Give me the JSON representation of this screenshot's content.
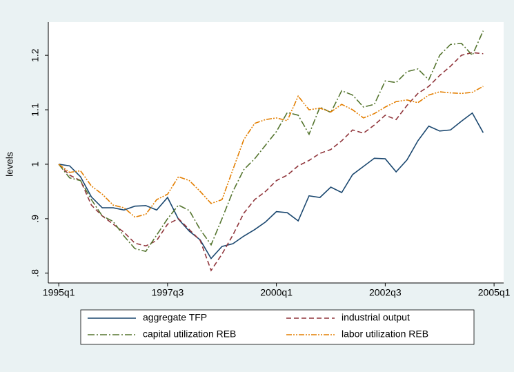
{
  "chart_data": {
    "type": "line",
    "y_label": "levels",
    "x": [
      1995,
      1995.25,
      1995.5,
      1995.75,
      1996,
      1996.25,
      1996.5,
      1996.75,
      1997,
      1997.25,
      1997.5,
      1997.75,
      1998,
      1998.25,
      1998.5,
      1998.75,
      1999,
      1999.25,
      1999.5,
      1999.75,
      2000,
      2000.25,
      2000.5,
      2000.75,
      2001,
      2001.25,
      2001.5,
      2001.75,
      2002,
      2002.25,
      2002.5,
      2002.75,
      2003,
      2003.25,
      2003.5,
      2003.75,
      2004,
      2004.25,
      2004.5,
      2004.75
    ],
    "xlim": [
      1994.76,
      2005.22
    ],
    "xticks": [
      {
        "value": 1995,
        "label": "1995q1"
      },
      {
        "value": 1997.5,
        "label": "1997q3"
      },
      {
        "value": 2000,
        "label": "2000q1"
      },
      {
        "value": 2002.5,
        "label": "2002q3"
      },
      {
        "value": 2005,
        "label": "2005q1"
      }
    ],
    "ylim": [
      0.782,
      1.261
    ],
    "yticks": [
      {
        "value": 0.8,
        "label": ".8"
      },
      {
        "value": 0.9,
        "label": ".9"
      },
      1,
      1.1,
      1.2
    ],
    "legend_position": "bottom",
    "series": [
      {
        "name": "aggregate TFP",
        "color": "#1a476f",
        "dash": "none",
        "values": [
          1.0,
          0.997,
          0.977,
          0.94,
          0.92,
          0.92,
          0.916,
          0.923,
          0.924,
          0.916,
          0.939,
          0.899,
          0.877,
          0.861,
          0.827,
          0.849,
          0.854,
          0.868,
          0.88,
          0.894,
          0.913,
          0.911,
          0.896,
          0.942,
          0.939,
          0.958,
          0.948,
          0.981,
          0.996,
          1.011,
          1.01,
          0.986,
          1.008,
          1.043,
          1.07,
          1.061,
          1.063,
          1.079,
          1.094,
          1.058
        ]
      },
      {
        "name": "industrial output",
        "color": "#90353b",
        "dash": "7 4",
        "values": [
          1.0,
          0.98,
          0.97,
          0.925,
          0.905,
          0.89,
          0.875,
          0.855,
          0.85,
          0.86,
          0.89,
          0.9,
          0.88,
          0.86,
          0.805,
          0.835,
          0.87,
          0.91,
          0.935,
          0.95,
          0.97,
          0.98,
          0.997,
          1.007,
          1.02,
          1.027,
          1.043,
          1.063,
          1.057,
          1.072,
          1.09,
          1.082,
          1.108,
          1.13,
          1.143,
          1.163,
          1.18,
          1.2,
          1.205,
          1.203
        ]
      },
      {
        "name": "capital utilization REB",
        "color": "#55752f",
        "dash": "10 3 2 3",
        "values": [
          1.0,
          0.975,
          0.97,
          0.935,
          0.905,
          0.895,
          0.868,
          0.845,
          0.84,
          0.87,
          0.9,
          0.925,
          0.915,
          0.88,
          0.852,
          0.9,
          0.95,
          0.99,
          1.01,
          1.035,
          1.06,
          1.095,
          1.09,
          1.055,
          1.105,
          1.095,
          1.135,
          1.127,
          1.105,
          1.11,
          1.153,
          1.15,
          1.17,
          1.175,
          1.155,
          1.2,
          1.22,
          1.222,
          1.2,
          1.245
        ]
      },
      {
        "name": "labor utilization REB",
        "color": "#e37e00",
        "dash": "8 2 2 2 2 2",
        "values": [
          1.0,
          0.985,
          0.988,
          0.96,
          0.945,
          0.925,
          0.92,
          0.903,
          0.908,
          0.935,
          0.945,
          0.977,
          0.97,
          0.95,
          0.928,
          0.935,
          0.99,
          1.045,
          1.075,
          1.082,
          1.085,
          1.08,
          1.125,
          1.1,
          1.103,
          1.096,
          1.11,
          1.1,
          1.085,
          1.093,
          1.105,
          1.115,
          1.118,
          1.113,
          1.127,
          1.133,
          1.131,
          1.13,
          1.132,
          1.143
        ]
      }
    ]
  }
}
